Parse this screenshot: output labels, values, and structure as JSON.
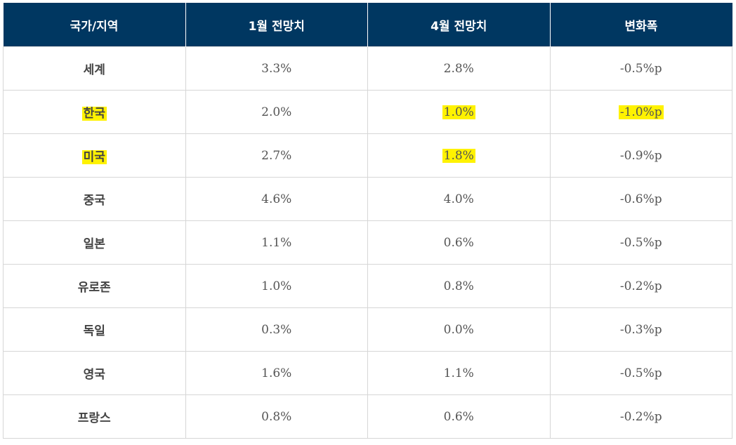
{
  "chart_data": {
    "type": "table",
    "columns": [
      "국가/지역",
      "1월 전망치",
      "4월 전망치",
      "변화폭"
    ],
    "rows": [
      {
        "name": "세계",
        "jan": "3.3%",
        "apr": "2.8%",
        "change": "-0.5%p",
        "highlight": []
      },
      {
        "name": "한국",
        "jan": "2.0%",
        "apr": "1.0%",
        "change": "-1.0%p",
        "highlight": [
          "name",
          "apr",
          "change"
        ]
      },
      {
        "name": "미국",
        "jan": "2.7%",
        "apr": "1.8%",
        "change": "-0.9%p",
        "highlight": [
          "name",
          "apr"
        ]
      },
      {
        "name": "중국",
        "jan": "4.6%",
        "apr": "4.0%",
        "change": "-0.6%p",
        "highlight": []
      },
      {
        "name": "일본",
        "jan": "1.1%",
        "apr": "0.6%",
        "change": "-0.5%p",
        "highlight": []
      },
      {
        "name": "유로존",
        "jan": "1.0%",
        "apr": "0.8%",
        "change": "-0.2%p",
        "highlight": []
      },
      {
        "name": "독일",
        "jan": "0.3%",
        "apr": "0.0%",
        "change": "-0.3%p",
        "highlight": []
      },
      {
        "name": "영국",
        "jan": "1.6%",
        "apr": "1.1%",
        "change": "-0.5%p",
        "highlight": []
      },
      {
        "name": "프랑스",
        "jan": "0.8%",
        "apr": "0.6%",
        "change": "-0.2%p",
        "highlight": []
      }
    ]
  },
  "colors": {
    "header_bg": "#003761",
    "header_text": "#ffffff",
    "highlight": "#fff200",
    "border": "#d6d6d6"
  }
}
